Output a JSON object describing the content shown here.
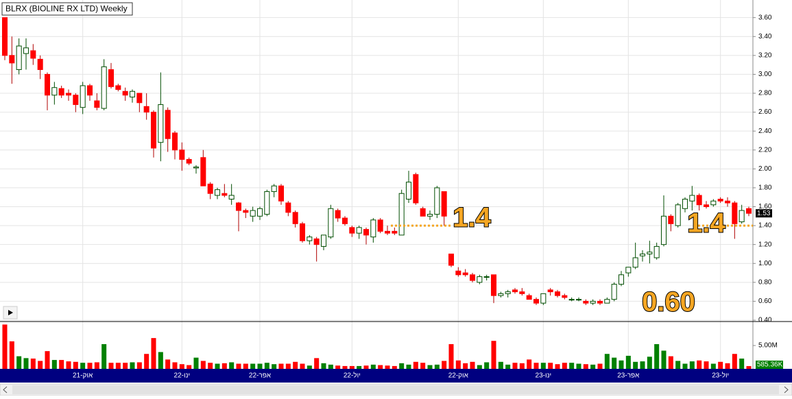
{
  "chart_data": {
    "type": "candlestick",
    "title": "BLRX (BIOLINE RX LTD) Weekly",
    "up_color": "#008000",
    "down_color": "#ff0000",
    "grid": true,
    "categories": [
      null,
      null,
      null,
      null,
      null,
      null,
      null,
      null,
      null,
      null,
      null,
      "21-אוק",
      null,
      null,
      null,
      null,
      null,
      null,
      null,
      null,
      null,
      null,
      null,
      null,
      null,
      "22-ינו",
      null,
      null,
      null,
      null,
      null,
      null,
      null,
      null,
      null,
      null,
      "22-אפר",
      null,
      null,
      null,
      null,
      null,
      null,
      null,
      null,
      null,
      null,
      null,
      null,
      "22-יול",
      null,
      null,
      null,
      null,
      null,
      null,
      null,
      null,
      null,
      null,
      null,
      null,
      null,
      null,
      "22-אוק",
      null,
      null,
      null,
      null,
      null,
      null,
      null,
      null,
      null,
      null,
      null,
      "23-ינו",
      null,
      null,
      null,
      null,
      null,
      null,
      null,
      null,
      null,
      null,
      null,
      "23-אפר",
      null,
      null,
      null,
      null,
      null,
      null,
      null,
      null,
      null,
      null,
      null,
      null,
      "23-יול",
      null,
      null,
      null,
      null
    ],
    "open": [
      3.6,
      3.2,
      3.05,
      3.22,
      3.25,
      3.16,
      3.0,
      2.78,
      2.85,
      2.8,
      2.78,
      2.65,
      2.88,
      2.72,
      2.64,
      3.05,
      2.88,
      2.82,
      2.76,
      2.8,
      2.66,
      2.6,
      2.28,
      2.62,
      2.38,
      2.2,
      2.1,
      2.01,
      2.12,
      1.84,
      1.72,
      1.74,
      1.68,
      1.64,
      1.56,
      1.5,
      1.5,
      1.52,
      1.76,
      1.82,
      1.64,
      1.54,
      1.42,
      1.24,
      1.26,
      1.18,
      1.28,
      1.56,
      1.48,
      1.38,
      1.32,
      1.36,
      1.28,
      1.46,
      1.34,
      1.34,
      1.3,
      1.68,
      1.94,
      1.58,
      1.5,
      1.52,
      1.76,
      1.1,
      0.92,
      0.9,
      0.88,
      0.8,
      0.86,
      0.88,
      0.66,
      0.68,
      0.72,
      0.7,
      0.66,
      0.62,
      0.58,
      0.72,
      0.7,
      0.66,
      0.62,
      0.62,
      0.6,
      0.58,
      0.6,
      0.58,
      0.62,
      0.78,
      0.9,
      0.96,
      1.08,
      1.1,
      1.06,
      1.2,
      1.5,
      1.4,
      1.58,
      1.66,
      1.72,
      1.62,
      1.62,
      1.68,
      1.66,
      1.64,
      1.44,
      1.58
    ],
    "high": [
      3.6,
      3.4,
      3.38,
      3.38,
      3.32,
      3.2,
      3.02,
      2.92,
      2.88,
      2.84,
      2.8,
      2.92,
      2.9,
      2.8,
      3.16,
      3.12,
      2.9,
      2.86,
      2.84,
      2.8,
      2.8,
      2.62,
      3.02,
      2.65,
      2.4,
      2.28,
      2.12,
      2.04,
      2.2,
      1.86,
      1.8,
      1.84,
      1.84,
      1.65,
      1.58,
      1.6,
      1.6,
      1.78,
      1.84,
      1.84,
      1.66,
      1.56,
      1.44,
      1.3,
      1.28,
      1.3,
      1.62,
      1.58,
      1.5,
      1.4,
      1.4,
      1.38,
      1.48,
      1.48,
      1.4,
      1.38,
      1.78,
      1.98,
      1.96,
      1.6,
      1.56,
      1.82,
      1.76,
      1.1,
      0.96,
      0.94,
      0.9,
      0.88,
      0.88,
      0.88,
      0.7,
      0.72,
      0.74,
      0.74,
      0.68,
      0.64,
      0.68,
      0.74,
      0.72,
      0.68,
      0.64,
      0.64,
      0.62,
      0.62,
      0.62,
      0.64,
      0.8,
      0.92,
      0.96,
      1.22,
      1.14,
      1.24,
      1.22,
      1.72,
      1.52,
      1.64,
      1.7,
      1.82,
      1.74,
      1.66,
      1.68,
      1.7,
      1.7,
      1.66,
      1.62,
      1.6
    ],
    "low": [
      3.15,
      2.9,
      3.0,
      3.05,
      3.1,
      2.95,
      2.62,
      2.68,
      2.75,
      2.72,
      2.6,
      2.58,
      2.72,
      2.62,
      2.62,
      2.85,
      2.82,
      2.72,
      2.7,
      2.6,
      2.52,
      2.12,
      2.08,
      2.18,
      2.1,
      1.98,
      2.04,
      1.95,
      1.82,
      1.68,
      1.68,
      1.7,
      1.62,
      1.34,
      1.48,
      1.44,
      1.46,
      1.5,
      1.7,
      1.62,
      1.5,
      1.38,
      1.22,
      1.2,
      1.02,
      1.14,
      1.26,
      1.44,
      1.4,
      1.28,
      1.26,
      1.2,
      1.22,
      1.32,
      1.3,
      1.3,
      1.3,
      1.64,
      1.62,
      1.5,
      1.46,
      1.48,
      1.4,
      0.96,
      0.86,
      0.86,
      0.8,
      0.78,
      0.82,
      0.58,
      0.64,
      0.64,
      0.68,
      0.66,
      0.62,
      0.56,
      0.56,
      0.66,
      0.64,
      0.62,
      0.6,
      0.6,
      0.56,
      0.56,
      0.56,
      0.58,
      0.6,
      0.76,
      0.86,
      0.94,
      1.02,
      1.0,
      1.04,
      1.18,
      1.34,
      1.38,
      1.54,
      1.56,
      1.56,
      1.58,
      1.6,
      1.64,
      1.6,
      1.26,
      1.42,
      1.5
    ],
    "close": [
      3.2,
      3.12,
      3.3,
      3.28,
      3.17,
      3.05,
      2.78,
      2.86,
      2.78,
      2.78,
      2.68,
      2.88,
      2.78,
      2.65,
      3.08,
      2.87,
      2.84,
      2.78,
      2.82,
      2.7,
      2.6,
      2.22,
      2.68,
      2.32,
      2.2,
      2.1,
      2.06,
      2.02,
      1.82,
      1.74,
      1.78,
      1.72,
      1.72,
      1.56,
      1.54,
      1.56,
      1.58,
      1.76,
      1.82,
      1.66,
      1.54,
      1.42,
      1.24,
      1.28,
      1.2,
      1.3,
      1.58,
      1.48,
      1.42,
      1.32,
      1.38,
      1.3,
      1.46,
      1.34,
      1.32,
      1.32,
      1.74,
      1.86,
      1.64,
      1.5,
      1.52,
      1.8,
      1.5,
      0.98,
      0.88,
      0.88,
      0.82,
      0.86,
      0.86,
      0.66,
      0.68,
      0.7,
      0.7,
      0.68,
      0.62,
      0.58,
      0.68,
      0.7,
      0.66,
      0.64,
      0.62,
      0.62,
      0.58,
      0.6,
      0.58,
      0.62,
      0.78,
      0.88,
      0.96,
      1.06,
      1.1,
      1.12,
      1.18,
      1.5,
      1.42,
      1.62,
      1.68,
      1.72,
      1.62,
      1.6,
      1.66,
      1.66,
      1.64,
      1.42,
      1.56,
      1.53
    ],
    "ylim": [
      0.4,
      3.75
    ],
    "yticks": [
      {
        "value": 0.4,
        "label": "0.40"
      },
      {
        "value": 0.6,
        "label": "0.60"
      },
      {
        "value": 0.8,
        "label": "0.80"
      },
      {
        "value": 1.0,
        "label": "1.00"
      },
      {
        "value": 1.2,
        "label": "1.20"
      },
      {
        "value": 1.4,
        "label": "1.40"
      },
      {
        "value": 1.6,
        "label": "1.60"
      },
      {
        "value": 1.8,
        "label": "1.80"
      },
      {
        "value": 2.0,
        "label": "2.00"
      },
      {
        "value": 2.2,
        "label": "2.20"
      },
      {
        "value": 2.4,
        "label": "2.40"
      },
      {
        "value": 2.6,
        "label": "2.60"
      },
      {
        "value": 2.8,
        "label": "2.80"
      },
      {
        "value": 3.0,
        "label": "3.00"
      },
      {
        "value": 3.2,
        "label": "3.20"
      },
      {
        "value": 3.4,
        "label": "3.40"
      },
      {
        "value": 3.6,
        "label": "3.60"
      }
    ],
    "volume": {
      "values": [
        9500000,
        5900000,
        2700000,
        2300000,
        2200000,
        1700000,
        3800000,
        1900000,
        1900000,
        1600000,
        1500000,
        1300000,
        1300000,
        1400000,
        5300000,
        1300000,
        1300000,
        1300000,
        1400000,
        1400000,
        3200000,
        6600000,
        3600000,
        2000000,
        1400000,
        1000000,
        800000,
        2400000,
        1700000,
        1300000,
        1100000,
        1200000,
        1400000,
        1100000,
        1100000,
        1100000,
        1100000,
        1300000,
        1000000,
        1100000,
        1100000,
        1500000,
        1100000,
        700000,
        2300000,
        1200000,
        900000,
        700000,
        600000,
        600000,
        600000,
        700000,
        900000,
        800000,
        700000,
        600000,
        1200000,
        900000,
        1500000,
        1300000,
        800000,
        900000,
        1700000,
        5300000,
        1800000,
        1200000,
        1500000,
        800000,
        1400000,
        6000000,
        1500000,
        900000,
        1300000,
        1200000,
        2000000,
        1300000,
        1300000,
        1300000,
        1000000,
        1300000,
        1300000,
        1100000,
        1000000,
        900000,
        1100000,
        3200000,
        2400000,
        1800000,
        2800000,
        1500000,
        1600000,
        2600000,
        5300000,
        3900000,
        2700000,
        1700000,
        1100000,
        1600000,
        1800000,
        1600000,
        1100000,
        1500000,
        1200000,
        3200000,
        2200000,
        585360
      ],
      "last_value_label": "585.36K",
      "ylim": [
        0,
        10000000
      ],
      "yticks": [
        {
          "value": 5000000,
          "label": "5.00M"
        }
      ]
    },
    "annotations": [
      {
        "text": "1.4",
        "line_value": 1.4
      },
      {
        "text": "1.4",
        "line_value": 1.4
      },
      {
        "text": "0.60"
      }
    ]
  }
}
